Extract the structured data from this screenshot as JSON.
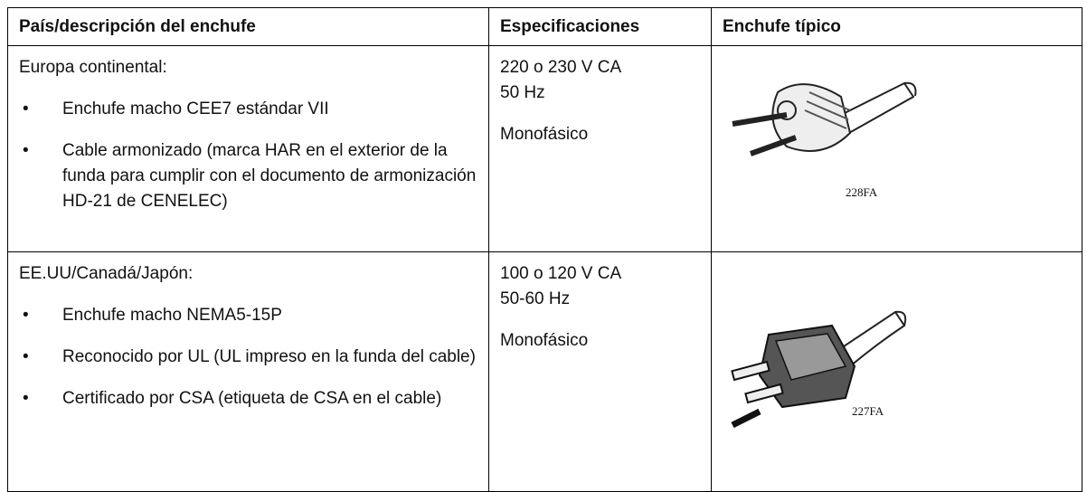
{
  "table": {
    "header": [
      "País/descripción del enchufe",
      "Especificaciones",
      "Enchufe típico"
    ],
    "rows": [
      {
        "region": "Europa continental:",
        "bullets": [
          "Enchufe macho CEE7 estándar VII",
          "Cable armonizado (marca HAR en el exterior de la funda para cumplir con el documento de armonización HD-21 de CENELEC)"
        ],
        "specs": [
          "220 o 230 V CA",
          "50 Hz"
        ],
        "phase": "Monofásico",
        "image_caption": "228FA"
      },
      {
        "region": "EE.UU/Canadá/Japón:",
        "bullets": [
          "Enchufe macho NEMA5-15P",
          "Reconocido por UL (UL impreso en la funda del cable)",
          "Certificado por CSA (etiqueta de CSA en el cable)"
        ],
        "specs": [
          "100 o 120 V CA",
          "50-60 Hz"
        ],
        "phase": "Monofásico",
        "image_caption": "227FA"
      }
    ]
  }
}
